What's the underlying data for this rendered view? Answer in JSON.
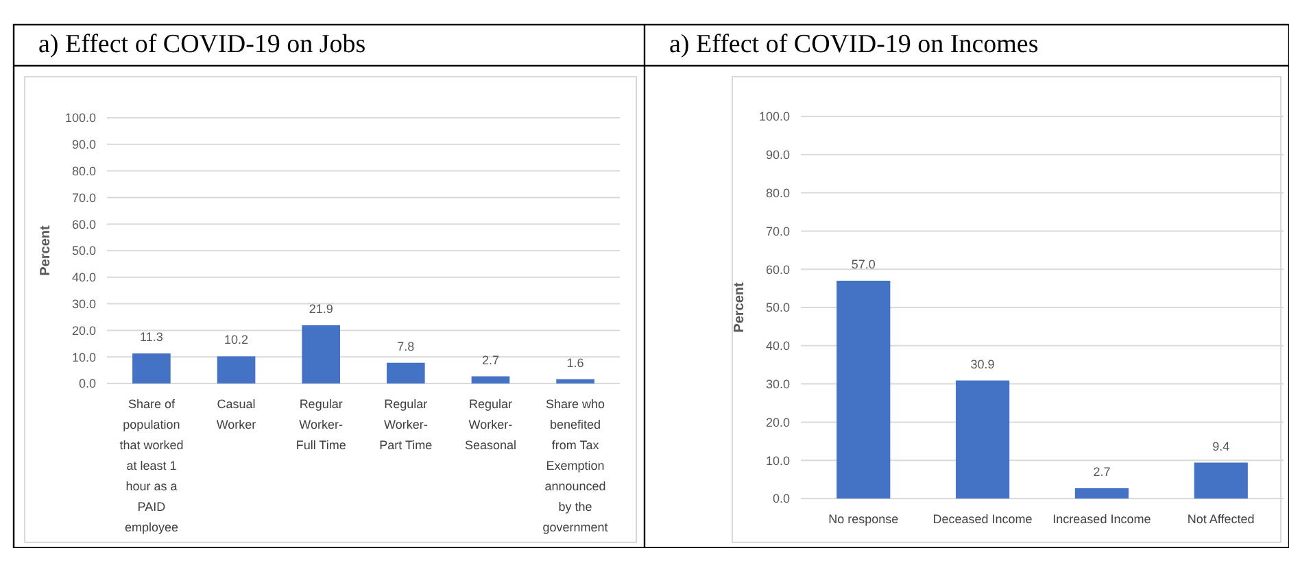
{
  "chart_data": [
    {
      "type": "bar",
      "title": "a) Effect of COVID-19 on Jobs",
      "ylabel": "Percent",
      "categories": [
        "Share of population that worked at least 1 hour as a PAID employee",
        "Casual Worker",
        "Regular Worker- Full Time",
        "Regular Worker- Part Time",
        "Regular Worker- Seasonal",
        "Share who benefited from Tax Exemption announced by the government"
      ],
      "values": [
        11.3,
        10.2,
        21.9,
        7.8,
        2.7,
        1.6
      ],
      "color": "#4472c4",
      "data_labels": true,
      "grid": "y",
      "ylim": [
        0,
        100
      ],
      "yticks": [
        {
          "value": 0,
          "label": "0.0"
        },
        {
          "value": 10,
          "label": "10.0"
        },
        {
          "value": 20,
          "label": "20.0"
        },
        {
          "value": 30,
          "label": "30.0"
        },
        {
          "value": 40,
          "label": "40.0"
        },
        {
          "value": 50,
          "label": "50.0"
        },
        {
          "value": 60,
          "label": "60.0"
        },
        {
          "value": 70,
          "label": "70.0"
        },
        {
          "value": 80,
          "label": "80.0"
        },
        {
          "value": 90,
          "label": "90.0"
        },
        {
          "value": 100,
          "label": "100.0"
        }
      ]
    },
    {
      "type": "bar",
      "title": "a) Effect of COVID-19 on Incomes",
      "ylabel": "Percent",
      "categories": [
        "No response",
        "Deceased Income",
        "Increased Income",
        "Not Affected"
      ],
      "values": [
        57.0,
        30.9,
        2.7,
        9.4
      ],
      "value_labels": [
        "57.0",
        "30.9",
        "2.7",
        "9.4"
      ],
      "color": "#4472c4",
      "grid": "y",
      "ylim": [
        0,
        100
      ],
      "yticks": [
        {
          "value": 0,
          "label": "0.0"
        },
        {
          "value": 10,
          "label": "10.0"
        },
        {
          "value": 20,
          "label": "20.0"
        },
        {
          "value": 30,
          "label": "30.0"
        },
        {
          "value": 40,
          "label": "40.0"
        },
        {
          "value": 50,
          "label": "50.0"
        },
        {
          "value": 60,
          "label": "60.0"
        },
        {
          "value": 70,
          "label": "70.0"
        },
        {
          "value": 80,
          "label": "80.0"
        },
        {
          "value": 90,
          "label": "90.0"
        },
        {
          "value": 100,
          "label": "100.0"
        }
      ]
    }
  ]
}
